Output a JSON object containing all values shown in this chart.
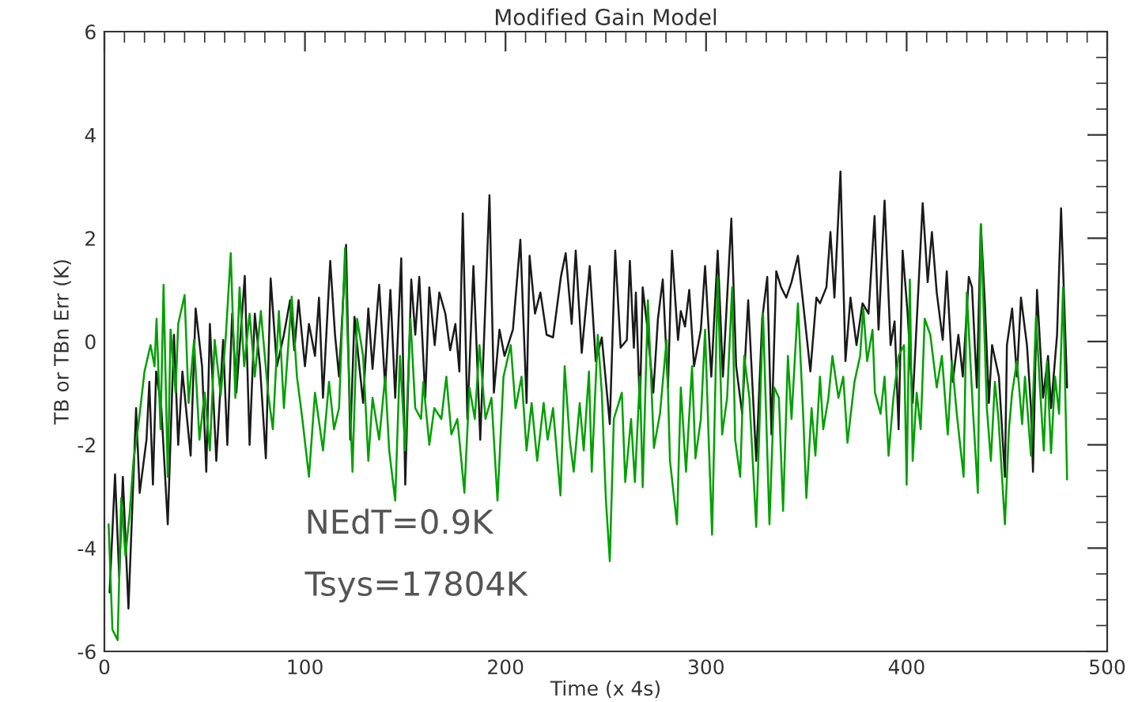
{
  "chart_data": {
    "type": "line",
    "title": "Modified Gain Model",
    "xlabel": "Time (x 4s)",
    "ylabel": "TB or TBn Err (K)",
    "xlim": [
      0,
      500
    ],
    "xticks": [
      0,
      100,
      200,
      300,
      400,
      500
    ],
    "ylim": [
      -6,
      6
    ],
    "yticks": [
      -6,
      -4,
      -2,
      0,
      2,
      4,
      6
    ],
    "grid": false,
    "marker": "none",
    "line_style": "solid",
    "annotations": [
      "NEdT=0.9K",
      "Tsys=17804K"
    ],
    "series": [
      {
        "color": "#1a1a1a",
        "x": [
          2.6,
          5.3,
          7.4,
          9.2,
          12,
          15.8,
          17.6,
          21,
          22.4,
          24.2,
          25.8,
          28.4,
          31.6,
          34.7,
          36.8,
          38.9,
          43,
          45.5,
          48.7,
          50.8,
          52.6,
          55.8,
          59.2,
          61.3,
          63.7,
          65.8,
          70,
          72.4,
          75,
          77.6,
          80.5,
          82.9,
          86,
          89.5,
          92.6,
          94.7,
          96.8,
          100,
          102,
          105,
          107,
          109,
          112.6,
          115,
          117,
          120.5,
          122.6,
          124.7,
          126.3,
          129,
          131.6,
          133.7,
          137,
          140,
          142.6,
          145,
          148,
          150,
          153,
          155,
          157,
          160,
          162,
          164.7,
          167,
          170,
          172.4,
          175,
          177,
          178.7,
          181,
          184,
          187.4,
          192,
          194.2,
          197,
          199.5,
          203.7,
          207.4,
          210.5,
          212,
          214.7,
          217.4,
          220.5,
          223.7,
          227.6,
          230,
          233,
          235,
          238,
          242,
          245,
          248,
          252,
          254.7,
          257.4,
          260.5,
          262,
          264,
          265,
          267,
          268.4,
          270.5,
          273.7,
          276,
          278.4,
          281,
          283,
          286,
          287.4,
          289.5,
          291.6,
          294,
          297.4,
          299.5,
          302.6,
          305.8,
          308.4,
          312.6,
          315,
          318,
          321,
          325,
          328,
          330.5,
          332.6,
          335,
          337.4,
          340,
          342.6,
          345.8,
          348.4,
          352,
          355,
          356.8,
          360,
          362,
          364,
          367,
          369.5,
          372,
          375,
          378,
          381,
          384,
          386,
          389,
          392,
          394,
          396,
          398,
          400.5,
          403,
          408,
          410.5,
          412.6,
          415,
          418,
          420,
          423,
          425.8,
          428,
          431,
          432.6,
          435,
          437,
          439,
          441,
          442.6,
          446,
          449,
          450,
          452.6,
          455,
          457,
          460,
          462,
          463,
          465,
          468,
          470.5,
          472,
          475,
          477,
          480
        ],
        "values": [
          -4.86,
          -2.57,
          -4.56,
          -2.62,
          -5.17,
          -1.29,
          -2.93,
          -1.9,
          -0.78,
          -2.77,
          -0.58,
          -1.29,
          -3.54,
          0.13,
          -2.0,
          -0.58,
          -2.21,
          0.64,
          -0.48,
          -2.52,
          0.34,
          -2.31,
          0.03,
          -2.0,
          0.54,
          -0.99,
          1.27,
          -2.0,
          0.54,
          -0.48,
          -2.26,
          1.22,
          -0.48,
          0.13,
          0.8,
          -0.17,
          0.8,
          -0.48,
          0.34,
          -0.28,
          0.85,
          -1.09,
          1.56,
          0.13,
          -0.68,
          1.87,
          -1.9,
          0.48,
          -0.17,
          -1.19,
          0.64,
          -0.53,
          1.1,
          -0.89,
          1.0,
          -1.09,
          1.61,
          -2.77,
          1.2,
          0.13,
          1.25,
          -1.09,
          1.05,
          -0.07,
          0.95,
          0.54,
          -0.17,
          0.34,
          -0.58,
          2.48,
          -1.5,
          1.46,
          -1.9,
          2.83,
          -0.99,
          0.23,
          -0.28,
          0.23,
          1.97,
          -1.19,
          1.66,
          0.54,
          0.95,
          0.13,
          0.08,
          1.25,
          1.71,
          0.34,
          1.76,
          -0.22,
          1.46,
          -0.38,
          0.08,
          -1.6,
          1.76,
          -0.12,
          0.03,
          1.56,
          -0.12,
          0.95,
          -1.29,
          1.05,
          0.34,
          -0.99,
          0.44,
          1.2,
          -0.89,
          1.76,
          0.03,
          0.59,
          0.29,
          1.0,
          -0.48,
          0.23,
          1.46,
          -0.68,
          1.76,
          -0.68,
          2.38,
          -0.48,
          -1.4,
          0.8,
          -2.31,
          0.44,
          1.25,
          -1.8,
          1.36,
          1.05,
          0.85,
          1.15,
          1.66,
          0.74,
          -0.58,
          0.85,
          0.74,
          1.05,
          2.12,
          0.85,
          3.29,
          -0.38,
          0.85,
          -0.07,
          0.74,
          0.54,
          2.43,
          0.23,
          2.73,
          -0.07,
          0.39,
          -1.7,
          1.76,
          0.54,
          -1.19,
          2.68,
          1.15,
          2.12,
          0.95,
          0.03,
          1.36,
          -0.78,
          0.13,
          -0.68,
          1.25,
          1.05,
          -0.89,
          2.27,
          0.74,
          -1.19,
          -0.07,
          -0.68,
          -2.62,
          -0.07,
          0.64,
          -0.68,
          0.85,
          -0.07,
          -1.29,
          -2.52,
          1.0,
          -1.09,
          -0.28,
          -1.29,
          0.13,
          2.58,
          -0.89
        ]
      },
      {
        "color": "#00a000",
        "x": [
          2.1,
          4,
          6.6,
          8.4,
          10.5,
          12.6,
          14.5,
          17,
          20,
          23,
          25,
          26,
          28,
          29.5,
          31.6,
          33,
          35.5,
          36.8,
          40,
          42,
          44.7,
          47.4,
          50,
          52.6,
          55,
          58,
          60.5,
          63,
          65.3,
          67.4,
          69.7,
          72.4,
          75,
          78,
          81.6,
          84,
          87,
          89.5,
          93.4,
          96,
          98.7,
          102,
          105,
          109,
          112,
          114.5,
          117,
          120,
          121,
          123.7,
          126,
          129,
          131.6,
          133.7,
          137,
          140,
          142,
          145,
          147.4,
          150,
          152.6,
          155,
          157.9,
          159,
          162,
          164.5,
          168,
          170.5,
          173,
          176,
          179.5,
          182,
          184.7,
          187,
          190,
          193,
          196,
          199,
          202.6,
          205,
          208,
          210.5,
          213,
          215.8,
          219,
          221,
          223.7,
          227.4,
          229.5,
          232,
          234,
          237,
          239,
          241.6,
          243,
          246,
          248,
          250,
          252,
          254,
          258,
          259.7,
          262.6,
          264.5,
          267,
          268.4,
          271,
          274,
          277,
          280.3,
          282,
          285.5,
          287.4,
          290,
          293,
          294.7,
          297.4,
          299.5,
          301.3,
          303,
          305.8,
          308,
          310.5,
          313,
          314.5,
          317,
          319,
          321.6,
          325,
          328.4,
          331.6,
          334,
          336.3,
          338.4,
          340.8,
          342.6,
          345.8,
          348.4,
          350,
          352.6,
          354.5,
          356.8,
          358.4,
          361,
          363,
          366,
          368.4,
          370.5,
          374,
          376.8,
          378.4,
          380.3,
          383,
          384.2,
          387,
          389,
          391,
          393.4,
          396,
          398.7,
          400,
          401.6,
          403,
          405,
          407,
          409,
          411.8,
          415,
          417.6,
          420.5,
          422.6,
          425,
          428.4,
          430,
          433,
          435.5,
          437,
          440,
          442,
          444,
          445.8,
          449,
          451,
          452.6,
          455,
          457.6,
          459,
          462,
          464.5,
          466.3,
          468.4,
          470,
          472,
          474,
          476,
          478,
          480
        ],
        "values": [
          -3.54,
          -5.58,
          -5.78,
          -3.03,
          -4.15,
          -3.33,
          -2.31,
          -1.6,
          -0.58,
          -0.07,
          -0.48,
          0.44,
          -1.7,
          1.1,
          -2.62,
          0.23,
          -0.99,
          0.34,
          0.9,
          -1.19,
          0.03,
          -1.9,
          -0.99,
          -2.11,
          0.03,
          -1.04,
          0.08,
          1.71,
          -1.09,
          1.05,
          -0.48,
          0.54,
          -0.68,
          0.59,
          -0.99,
          -1.7,
          0.59,
          -1.29,
          0.87,
          -0.68,
          -1.5,
          -2.62,
          -0.99,
          -2.11,
          -0.78,
          -1.7,
          -1.29,
          1.81,
          0.34,
          -2.52,
          0.44,
          -0.28,
          -2.31,
          -1.09,
          -1.9,
          -0.68,
          -2.11,
          -3.08,
          -0.28,
          -2.11,
          0.44,
          -1.29,
          -1.5,
          -0.78,
          -2.0,
          -1.29,
          -1.5,
          -0.68,
          -1.8,
          -1.5,
          -2.93,
          -0.89,
          -1.5,
          -0.07,
          -1.5,
          -1.09,
          -3.08,
          -0.68,
          -0.07,
          -1.29,
          -0.68,
          -2.11,
          -1.19,
          -2.31,
          -1.19,
          -1.9,
          -1.29,
          -2.98,
          -0.48,
          -1.9,
          -2.52,
          -1.19,
          -2.11,
          -0.58,
          -2.52,
          0.13,
          -0.99,
          -3.03,
          -4.25,
          -1.5,
          -0.99,
          -2.72,
          -1.5,
          -2.72,
          -0.68,
          -2.82,
          0.8,
          -2.06,
          -1.4,
          0.03,
          -2.31,
          -3.54,
          -0.89,
          -2.52,
          -0.48,
          -2.26,
          -1.5,
          0.23,
          -1.9,
          -3.74,
          1.25,
          -1.8,
          -1.09,
          1.05,
          -1.9,
          -2.62,
          -0.28,
          -1.09,
          -3.59,
          0.54,
          -3.54,
          -0.89,
          -1.09,
          -3.28,
          -0.28,
          -1.5,
          0.74,
          -1.4,
          -3.03,
          -1.29,
          -2.21,
          -0.68,
          -1.7,
          -1.09,
          -0.28,
          -1.09,
          -0.68,
          -1.96,
          -0.78,
          -0.28,
          0.64,
          -0.38,
          0.23,
          -0.99,
          -1.4,
          -0.68,
          -2.21,
          -1.09,
          -0.28,
          -0.07,
          -2.77,
          1.2,
          -2.31,
          -0.99,
          -1.7,
          0.44,
          0.13,
          -0.89,
          -0.28,
          -1.8,
          -0.38,
          -1.4,
          -2.62,
          0.95,
          -1.29,
          -2.93,
          2.27,
          -1.29,
          -2.31,
          -0.78,
          -1.5,
          -3.54,
          -1.7,
          -0.99,
          -0.38,
          -1.6,
          -0.68,
          -2.21,
          0.49,
          -0.78,
          -2.11,
          -0.38,
          -2.16,
          -0.68,
          -1.4,
          1.05,
          -2.67
        ]
      }
    ]
  }
}
